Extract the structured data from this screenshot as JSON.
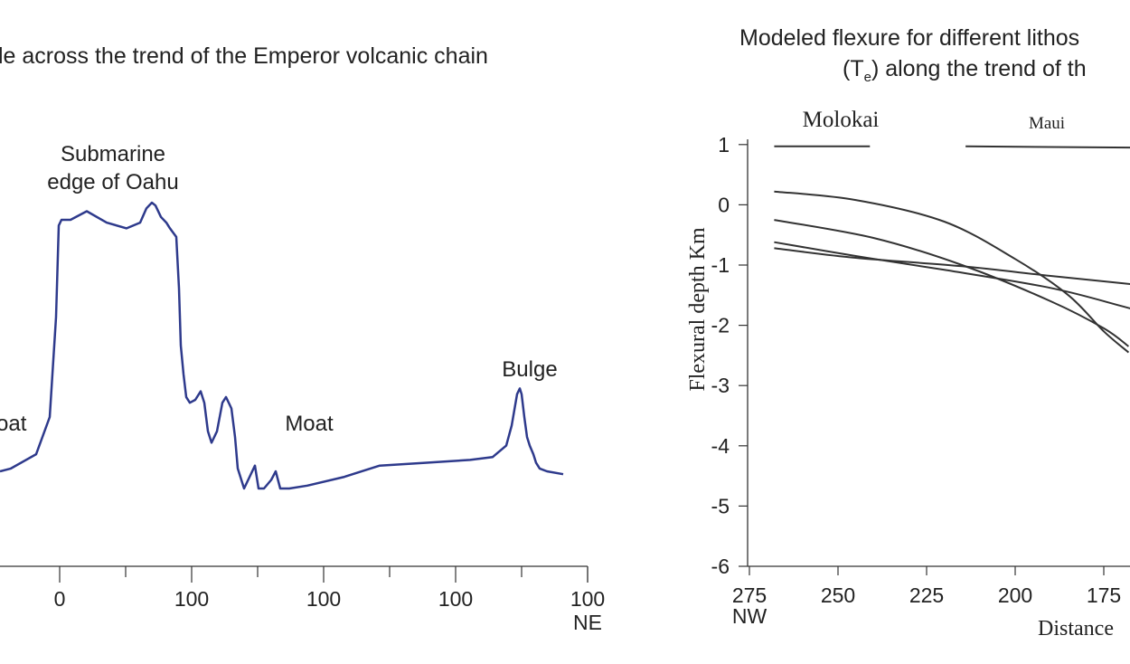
{
  "chart_data": [
    {
      "type": "line",
      "title": "le across the trend of the Emperor volcanic chain",
      "xlabel_right": "NE",
      "tick_labels": [
        "0",
        "100",
        "100",
        "100",
        "100"
      ],
      "annotations": [
        "Submarine",
        "edge of Oahu",
        "oat",
        "Moat",
        "Bulge"
      ],
      "series_color": "#2e3a8c",
      "profile": {
        "x": [
          0,
          12,
          40,
          55,
          62,
          65,
          68,
          78,
          96,
          118,
          140,
          155,
          162,
          168,
          172,
          178,
          184,
          188,
          195,
          198,
          200,
          203,
          206,
          210,
          216,
          222,
          226,
          230,
          234,
          240,
          246,
          250,
          256,
          260,
          263,
          266,
          270,
          276,
          282,
          286,
          292,
          300,
          305,
          310,
          320,
          340,
          380,
          420,
          470,
          520,
          545,
          560,
          566,
          572,
          575,
          577,
          580,
          583,
          586,
          590,
          593,
          597,
          605,
          623
        ],
        "y": [
          0.06,
          0.07,
          0.12,
          0.25,
          0.6,
          0.92,
          0.94,
          0.94,
          0.97,
          0.93,
          0.91,
          0.93,
          0.98,
          1.0,
          0.99,
          0.95,
          0.93,
          0.91,
          0.88,
          0.7,
          0.5,
          0.4,
          0.32,
          0.3,
          0.31,
          0.34,
          0.3,
          0.2,
          0.16,
          0.2,
          0.3,
          0.32,
          0.28,
          0.18,
          0.07,
          0.04,
          0.0,
          0.04,
          0.08,
          0.0,
          0.0,
          0.03,
          0.06,
          0.0,
          0.0,
          0.01,
          0.04,
          0.08,
          0.09,
          0.1,
          0.11,
          0.15,
          0.22,
          0.33,
          0.35,
          0.33,
          0.25,
          0.18,
          0.15,
          0.12,
          0.09,
          0.07,
          0.06,
          0.05
        ]
      }
    },
    {
      "type": "line",
      "title_line1": "Modeled flexure for different lithos",
      "title_line2_pre": "(T",
      "title_line2_sub": "e",
      "title_line2_post": ") along the trend of th",
      "ylabel": "Flexural depth Km",
      "xlabel": "Distance",
      "x_direction_label": "NW",
      "ylim": [
        -6,
        1
      ],
      "xlim": [
        275,
        160
      ],
      "yticks": [
        1,
        0,
        -1,
        -2,
        -3,
        -4,
        -5,
        -6
      ],
      "ytick_labels": [
        "1",
        "0",
        "-1",
        "-2",
        "-3",
        "-4",
        "-5",
        "-6"
      ],
      "xticks": [
        275,
        250,
        225,
        200,
        175
      ],
      "xtick_labels": [
        "275",
        "250",
        "225",
        "200",
        "175"
      ],
      "islands": [
        {
          "name": "Molokai",
          "x_start": 268,
          "x_end": 241,
          "y": 0.97
        },
        {
          "name": "Maui",
          "x_start": 214,
          "x_end": 160,
          "y": 0.97
        }
      ],
      "series": [
        {
          "x": [
            268,
            245,
            220,
            200,
            185,
            175,
            168
          ],
          "y": [
            0.22,
            0.08,
            -0.28,
            -0.9,
            -1.5,
            -2.1,
            -2.45
          ]
        },
        {
          "x": [
            268,
            240,
            215,
            190,
            175,
            168
          ],
          "y": [
            -0.25,
            -0.55,
            -1.0,
            -1.6,
            -2.05,
            -2.35
          ]
        },
        {
          "x": [
            268,
            245,
            220,
            190,
            170,
            160
          ],
          "y": [
            -0.62,
            -0.85,
            -1.08,
            -1.38,
            -1.68,
            -1.85
          ]
        },
        {
          "x": [
            268,
            245,
            215,
            190,
            170,
            160
          ],
          "y": [
            -0.72,
            -0.88,
            -1.02,
            -1.18,
            -1.3,
            -1.36
          ]
        }
      ]
    }
  ]
}
